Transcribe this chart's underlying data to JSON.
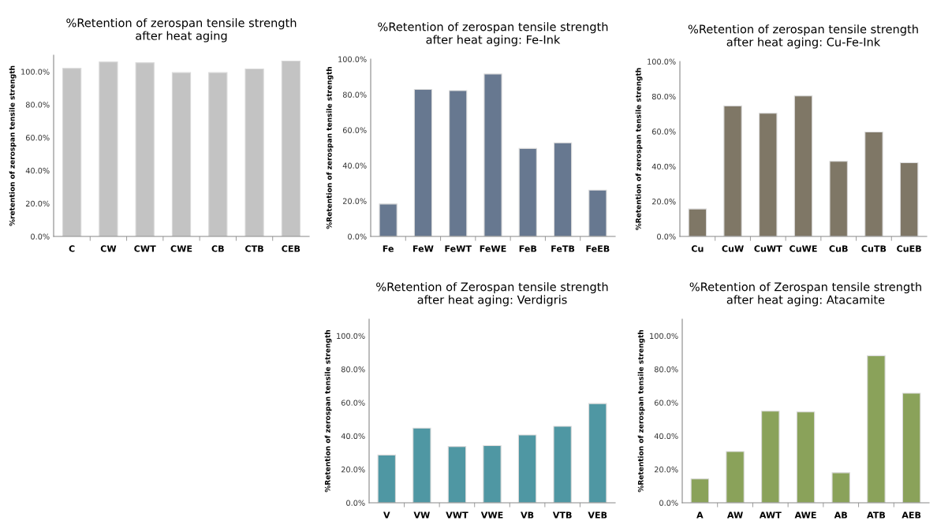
{
  "chart_data": [
    {
      "type": "bar",
      "title": "%Retention of zerospan tensile strength\nafter heat aging",
      "ylabel": "%retention of zerospan tensile strength",
      "categories": [
        "C",
        "CW",
        "CWT",
        "CWE",
        "CB",
        "CTB",
        "CEB"
      ],
      "values": [
        102.0,
        105.9,
        105.4,
        99.4,
        99.4,
        101.6,
        106.4
      ],
      "color": "#c3c3c3",
      "ylim": [
        0,
        110
      ],
      "yticks": [
        {
          "value": 0,
          "label": "0.0%"
        },
        {
          "value": 20,
          "label": "20.0%"
        },
        {
          "value": 40,
          "label": "40.0%"
        },
        {
          "value": 60,
          "label": "60.0%"
        },
        {
          "value": 80,
          "label": "80.0%"
        },
        {
          "value": 100,
          "label": "100.0%"
        }
      ],
      "grid": false,
      "legend": false
    },
    {
      "type": "bar",
      "title": "%Retention of zerospan tensile strength\nafter heat aging: Fe-Ink",
      "ylabel": "%Retention of zerospan tensile strength",
      "categories": [
        "Fe",
        "FeW",
        "FeWT",
        "FeWE",
        "FeB",
        "FeTB",
        "FeEB"
      ],
      "values": [
        18.3,
        82.9,
        82.2,
        91.6,
        49.6,
        52.8,
        26.1
      ],
      "color": "#677890",
      "ylim": [
        0,
        100
      ],
      "yticks": [
        {
          "value": 0,
          "label": "0.0%"
        },
        {
          "value": 20,
          "label": "20.0%"
        },
        {
          "value": 40,
          "label": "40.0%"
        },
        {
          "value": 60,
          "label": "60.0%"
        },
        {
          "value": 80,
          "label": "80.0%"
        },
        {
          "value": 100,
          "label": "100.0%"
        }
      ],
      "grid": false,
      "legend": false
    },
    {
      "type": "bar",
      "title": "%Retention of zerospan tensile strength\nafter heat aging: Cu-Fe-Ink",
      "ylabel": "%Retention of zerospan tensile strength",
      "categories": [
        "Cu",
        "CuW",
        "CuWT",
        "CuWE",
        "CuB",
        "CuTB",
        "CuEB"
      ],
      "values": [
        15.7,
        74.6,
        70.4,
        80.3,
        42.9,
        59.7,
        42.1
      ],
      "color": "#7f7766",
      "ylim": [
        0,
        100
      ],
      "yticks": [
        {
          "value": 0,
          "label": "0.0%"
        },
        {
          "value": 20,
          "label": "20.0%"
        },
        {
          "value": 40,
          "label": "40.0%"
        },
        {
          "value": 60,
          "label": "60.0%"
        },
        {
          "value": 80,
          "label": "80.0%"
        },
        {
          "value": 100,
          "label": "100.0%"
        }
      ],
      "grid": false,
      "legend": false
    },
    {
      "type": "bar",
      "title": "%Retention of Zerospan tensile strength\nafter heat aging: Verdigris",
      "ylabel": "%Retention of zerospan tensile strength",
      "categories": [
        "V",
        "VW",
        "VWT",
        "VWE",
        "VB",
        "VTB",
        "VEB"
      ],
      "values": [
        28.6,
        44.7,
        33.7,
        34.2,
        40.6,
        45.8,
        59.4
      ],
      "color": "#4f97a3",
      "ylim": [
        0,
        110
      ],
      "yticks": [
        {
          "value": 0,
          "label": "0.0%"
        },
        {
          "value": 20,
          "label": "20.0%"
        },
        {
          "value": 40,
          "label": "40.0%"
        },
        {
          "value": 60,
          "label": "60.0%"
        },
        {
          "value": 80,
          "label": "80.0%"
        },
        {
          "value": 100,
          "label": "100.0%"
        }
      ],
      "grid": false,
      "legend": false
    },
    {
      "type": "bar",
      "title": "%Retention of Zerospan tensile strength\nafter heat aging: Atacamite",
      "ylabel": "%Retention of zerospan tensile strength",
      "categories": [
        "A",
        "AW",
        "AWT",
        "AWE",
        "AB",
        "ATB",
        "AEB"
      ],
      "values": [
        14.3,
        30.7,
        54.9,
        54.4,
        18.0,
        88.1,
        65.6
      ],
      "color": "#8aa25a",
      "ylim": [
        0,
        110
      ],
      "yticks": [
        {
          "value": 0,
          "label": "0.0%"
        },
        {
          "value": 20,
          "label": "20.0%"
        },
        {
          "value": 40,
          "label": "40.0%"
        },
        {
          "value": 60,
          "label": "60.0%"
        },
        {
          "value": 80,
          "label": "80.0%"
        },
        {
          "value": 100,
          "label": "100.0%"
        }
      ],
      "grid": false,
      "legend": false
    }
  ]
}
